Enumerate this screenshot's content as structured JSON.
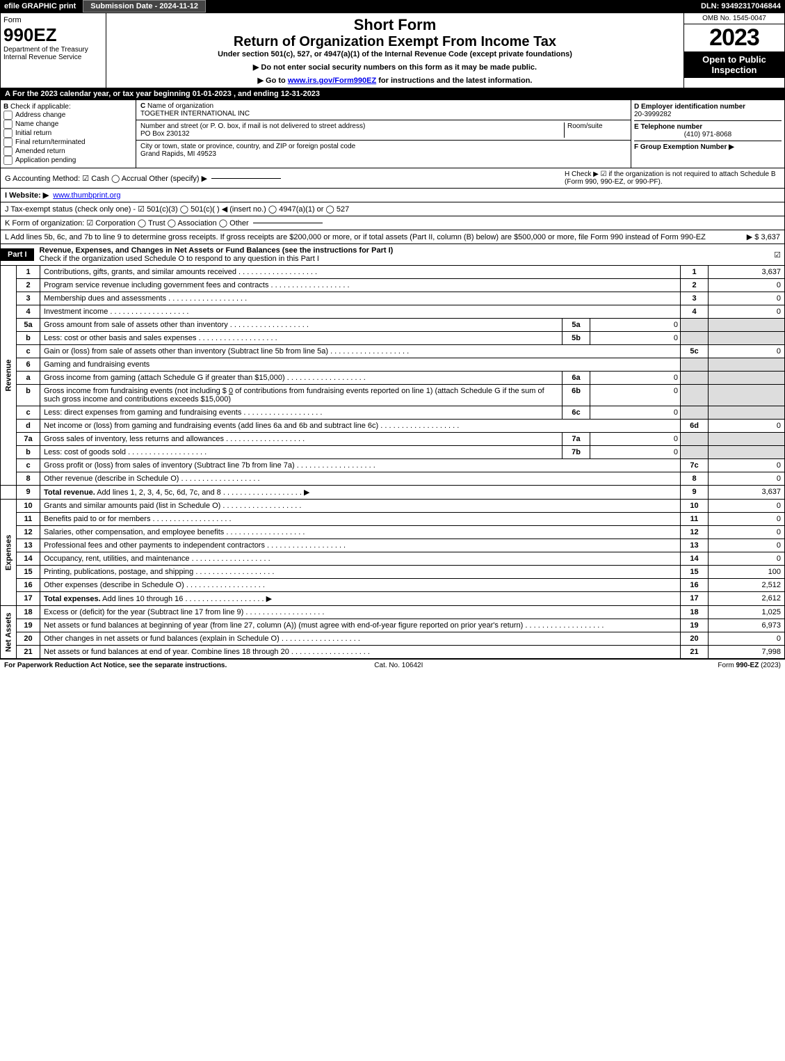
{
  "topbar": {
    "efile": "efile GRAPHIC print",
    "sub": "Submission Date - 2024-11-12",
    "dln": "DLN: 93492317046844"
  },
  "header": {
    "form": "Form",
    "code": "990EZ",
    "dept": "Department of the Treasury",
    "irs": "Internal Revenue Service",
    "short": "Short Form",
    "title": "Return of Organization Exempt From Income Tax",
    "under": "Under section 501(c), 527, or 4947(a)(1) of the Internal Revenue Code (except private foundations)",
    "ssn": "▶ Do not enter social security numbers on this form as it may be made public.",
    "goto_pre": "▶ Go to ",
    "goto_link": "www.irs.gov/Form990EZ",
    "goto_post": " for instructions and the latest information.",
    "omb": "OMB No. 1545-0047",
    "year": "2023",
    "open": "Open to Public Inspection"
  },
  "secA": {
    "label": "A",
    "text": "For the 2023 calendar year, or tax year beginning 01-01-2023 , and ending 12-31-2023"
  },
  "secB": {
    "label": "B",
    "text": "Check if applicable:",
    "opts": [
      "Address change",
      "Name change",
      "Initial return",
      "Final return/terminated",
      "Amended return",
      "Application pending"
    ]
  },
  "secC": {
    "labelC": "C",
    "name_lbl": "Name of organization",
    "name": "TOGETHER INTERNATIONAL INC",
    "street_lbl": "Number and street (or P. O. box, if mail is not delivered to street address)",
    "room": "Room/suite",
    "street": "PO Box 230132",
    "city_lbl": "City or town, state or province, country, and ZIP or foreign postal code",
    "city": "Grand Rapids, MI  49523"
  },
  "secD": {
    "d_lbl": "D Employer identification number",
    "ein": "20-3999282",
    "e_lbl": "E Telephone number",
    "phone": "(410) 971-8068",
    "f_lbl": "F Group Exemption Number   ▶"
  },
  "secG": {
    "text": "G Accounting Method:   ☑ Cash   ◯ Accrual   Other (specify) ▶"
  },
  "secH": {
    "text": "H   Check ▶ ☑ if the organization is not required to attach Schedule B (Form 990, 990-EZ, or 990-PF)."
  },
  "secI": {
    "pre": "I Website: ▶",
    "link": "www.thumbprint.org"
  },
  "secJ": {
    "text": "J Tax-exempt status (check only one) - ☑ 501(c)(3)  ◯ 501(c)( )  ◀ (insert no.)  ◯ 4947(a)(1) or  ◯ 527"
  },
  "secK": {
    "text": "K Form of organization:  ☑ Corporation   ◯ Trust   ◯ Association   ◯ Other"
  },
  "secL": {
    "text": "L Add lines 5b, 6c, and 7b to line 9 to determine gross receipts. If gross receipts are $200,000 or more, or if total assets (Part II, column (B) below) are $500,000 or more, file Form 990 instead of Form 990-EZ",
    "amt": "▶ $ 3,637"
  },
  "part1": {
    "tab": "Part I",
    "title": "Revenue, Expenses, and Changes in Net Assets or Fund Balances (see the instructions for Part I)",
    "checktxt": "Check if the organization used Schedule O to respond to any question in this Part I"
  },
  "vlabels": {
    "rev": "Revenue",
    "exp": "Expenses",
    "na": "Net Assets"
  },
  "lines": {
    "l1": {
      "n": "1",
      "t": "Contributions, gifts, grants, and similar amounts received",
      "rn": "1",
      "v": "3,637"
    },
    "l2": {
      "n": "2",
      "t": "Program service revenue including government fees and contracts",
      "rn": "2",
      "v": "0"
    },
    "l3": {
      "n": "3",
      "t": "Membership dues and assessments",
      "rn": "3",
      "v": "0"
    },
    "l4": {
      "n": "4",
      "t": "Investment income",
      "rn": "4",
      "v": "0"
    },
    "l5a": {
      "n": "5a",
      "t": "Gross amount from sale of assets other than inventory",
      "sn": "5a",
      "sv": "0"
    },
    "l5b": {
      "n": "b",
      "t": "Less: cost or other basis and sales expenses",
      "sn": "5b",
      "sv": "0"
    },
    "l5c": {
      "n": "c",
      "t": "Gain or (loss) from sale of assets other than inventory (Subtract line 5b from line 5a)",
      "rn": "5c",
      "v": "0"
    },
    "l6": {
      "n": "6",
      "t": "Gaming and fundraising events"
    },
    "l6a": {
      "n": "a",
      "t": "Gross income from gaming (attach Schedule G if greater than $15,000)",
      "sn": "6a",
      "sv": "0"
    },
    "l6b": {
      "n": "b",
      "t1": "Gross income from fundraising events (not including $",
      "amt": "0",
      "t2": "of contributions from fundraising events reported on line 1) (attach Schedule G if the sum of such gross income and contributions exceeds $15,000)",
      "sn": "6b",
      "sv": "0"
    },
    "l6c": {
      "n": "c",
      "t": "Less: direct expenses from gaming and fundraising events",
      "sn": "6c",
      "sv": "0"
    },
    "l6d": {
      "n": "d",
      "t": "Net income or (loss) from gaming and fundraising events (add lines 6a and 6b and subtract line 6c)",
      "rn": "6d",
      "v": "0"
    },
    "l7a": {
      "n": "7a",
      "t": "Gross sales of inventory, less returns and allowances",
      "sn": "7a",
      "sv": "0"
    },
    "l7b": {
      "n": "b",
      "t": "Less: cost of goods sold",
      "sn": "7b",
      "sv": "0"
    },
    "l7c": {
      "n": "c",
      "t": "Gross profit or (loss) from sales of inventory (Subtract line 7b from line 7a)",
      "rn": "7c",
      "v": "0"
    },
    "l8": {
      "n": "8",
      "t": "Other revenue (describe in Schedule O)",
      "rn": "8",
      "v": "0"
    },
    "l9": {
      "n": "9",
      "t": "Total revenue. Add lines 1, 2, 3, 4, 5c, 6d, 7c, and 8",
      "rn": "9",
      "v": "3,637"
    },
    "l10": {
      "n": "10",
      "t": "Grants and similar amounts paid (list in Schedule O)",
      "rn": "10",
      "v": "0"
    },
    "l11": {
      "n": "11",
      "t": "Benefits paid to or for members",
      "rn": "11",
      "v": "0"
    },
    "l12": {
      "n": "12",
      "t": "Salaries, other compensation, and employee benefits",
      "rn": "12",
      "v": "0"
    },
    "l13": {
      "n": "13",
      "t": "Professional fees and other payments to independent contractors",
      "rn": "13",
      "v": "0"
    },
    "l14": {
      "n": "14",
      "t": "Occupancy, rent, utilities, and maintenance",
      "rn": "14",
      "v": "0"
    },
    "l15": {
      "n": "15",
      "t": "Printing, publications, postage, and shipping",
      "rn": "15",
      "v": "100"
    },
    "l16": {
      "n": "16",
      "t": "Other expenses (describe in Schedule O)",
      "rn": "16",
      "v": "2,512"
    },
    "l17": {
      "n": "17",
      "t": "Total expenses. Add lines 10 through 16",
      "rn": "17",
      "v": "2,612"
    },
    "l18": {
      "n": "18",
      "t": "Excess or (deficit) for the year (Subtract line 17 from line 9)",
      "rn": "18",
      "v": "1,025"
    },
    "l19": {
      "n": "19",
      "t": "Net assets or fund balances at beginning of year (from line 27, column (A)) (must agree with end-of-year figure reported on prior year's return)",
      "rn": "19",
      "v": "6,973"
    },
    "l20": {
      "n": "20",
      "t": "Other changes in net assets or fund balances (explain in Schedule O)",
      "rn": "20",
      "v": "0"
    },
    "l21": {
      "n": "21",
      "t": "Net assets or fund balances at end of year. Combine lines 18 through 20",
      "rn": "21",
      "v": "7,998"
    }
  },
  "footer": {
    "left": "For Paperwork Reduction Act Notice, see the separate instructions.",
    "mid": "Cat. No. 10642I",
    "right": "Form 990-EZ (2023)"
  }
}
